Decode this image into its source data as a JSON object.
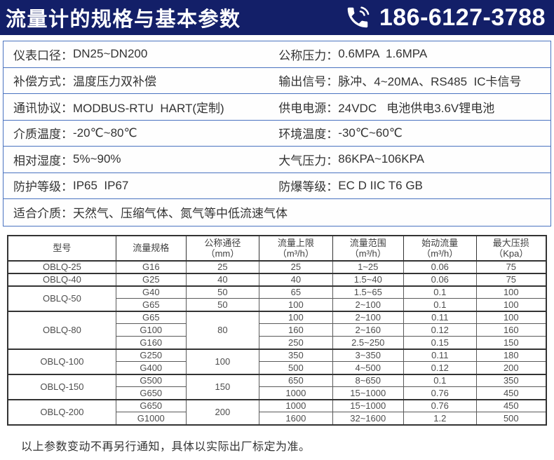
{
  "header": {
    "title": "流量计的规格与基本参数",
    "phone": "186-6127-3788",
    "bg_color": "#131f68",
    "text_color": "#ffffff"
  },
  "specs": {
    "border_color": "#4a73c0",
    "rows": [
      {
        "left": {
          "label": "仪表口径：",
          "value": "DN25~DN200"
        },
        "right": {
          "label": "公称压力：",
          "value": "0.6MPA  1.6MPA"
        }
      },
      {
        "left": {
          "label": "补偿方式：",
          "value": "温度压力双补偿"
        },
        "right": {
          "label": "输出信号：",
          "value": "脉冲、4~20MA、RS485  IC卡信号"
        }
      },
      {
        "left": {
          "label": "通讯协议：",
          "value": "MODBUS-RTU  HART(定制)"
        },
        "right": {
          "label": "供电电源：",
          "value": "24VDC   电池供电3.6V锂电池"
        }
      },
      {
        "left": {
          "label": "介质温度：",
          "value": "-20℃~80℃"
        },
        "right": {
          "label": "环境温度：",
          "value": "-30℃~60℃"
        }
      },
      {
        "left": {
          "label": "相对湿度：",
          "value": "5%~90%"
        },
        "right": {
          "label": "大气压力：",
          "value": "86KPA~106KPA"
        }
      },
      {
        "left": {
          "label": "防护等级：",
          "value": "IP65  IP67"
        },
        "right": {
          "label": "防爆等级：",
          "value": "EC D IIC T6 GB"
        }
      }
    ],
    "full_row": {
      "label": "适合介质：",
      "value": "天然气、压缩气体、氮气等中低流速气体"
    }
  },
  "table": {
    "headers": [
      {
        "line1": "型号",
        "line2": ""
      },
      {
        "line1": "流量规格",
        "line2": ""
      },
      {
        "line1": "公称通径",
        "line2": "（mm）"
      },
      {
        "line1": "流量上限",
        "line2": "（m³/h）"
      },
      {
        "line1": "流量范围",
        "line2": "（m³/h）"
      },
      {
        "line1": "始动流量",
        "line2": "（m³/h）"
      },
      {
        "line1": "最大压损",
        "line2": "（Kpa）"
      }
    ],
    "groups": [
      {
        "model": "OBLQ-25",
        "rows": [
          {
            "spec": "G16",
            "dn": "25",
            "dnspan": 1,
            "max": "25",
            "range": "1~25",
            "start": "0.06",
            "loss": "75"
          }
        ]
      },
      {
        "model": "OBLQ-40",
        "rows": [
          {
            "spec": "G25",
            "dn": "40",
            "dnspan": 1,
            "max": "40",
            "range": "1.5~40",
            "start": "0.06",
            "loss": "75"
          }
        ]
      },
      {
        "model": "OBLQ-50",
        "rows": [
          {
            "spec": "G40",
            "dn": "50",
            "dnspan": 1,
            "max": "65",
            "range": "1.5~65",
            "start": "0.1",
            "loss": "100"
          },
          {
            "spec": "G65",
            "dn": "50",
            "dnspan": 1,
            "max": "100",
            "range": "2~100",
            "start": "0.1",
            "loss": "100"
          }
        ]
      },
      {
        "model": "OBLQ-80",
        "rows": [
          {
            "spec": "G65",
            "dn": "80",
            "dnspan": 3,
            "max": "100",
            "range": "2~100",
            "start": "0.11",
            "loss": "100"
          },
          {
            "spec": "G100",
            "dn": null,
            "max": "160",
            "range": "2~160",
            "start": "0.12",
            "loss": "160"
          },
          {
            "spec": "G160",
            "dn": null,
            "max": "250",
            "range": "2.5~250",
            "start": "0.15",
            "loss": "150"
          }
        ]
      },
      {
        "model": "OBLQ-100",
        "rows": [
          {
            "spec": "G250",
            "dn": "100",
            "dnspan": 2,
            "max": "350",
            "range": "3~350",
            "start": "0.11",
            "loss": "180"
          },
          {
            "spec": "G400",
            "dn": null,
            "max": "500",
            "range": "4~500",
            "start": "0.12",
            "loss": "200"
          }
        ]
      },
      {
        "model": "OBLQ-150",
        "rows": [
          {
            "spec": "G500",
            "dn": "150",
            "dnspan": 2,
            "max": "650",
            "range": "8~650",
            "start": "0.1",
            "loss": "350"
          },
          {
            "spec": "G650",
            "dn": null,
            "max": "1000",
            "range": "15~1000",
            "start": "0.76",
            "loss": "450"
          }
        ]
      },
      {
        "model": "OBLQ-200",
        "rows": [
          {
            "spec": "G650",
            "dn": "200",
            "dnspan": 2,
            "max": "1000",
            "range": "15~1000",
            "start": "0.76",
            "loss": "450"
          },
          {
            "spec": "G1000",
            "dn": null,
            "max": "1600",
            "range": "32~1600",
            "start": "1.2",
            "loss": "500"
          }
        ]
      }
    ]
  },
  "footer": {
    "note": "以上参数变动不再另行通知，具体以实际出厂标定为准。"
  }
}
